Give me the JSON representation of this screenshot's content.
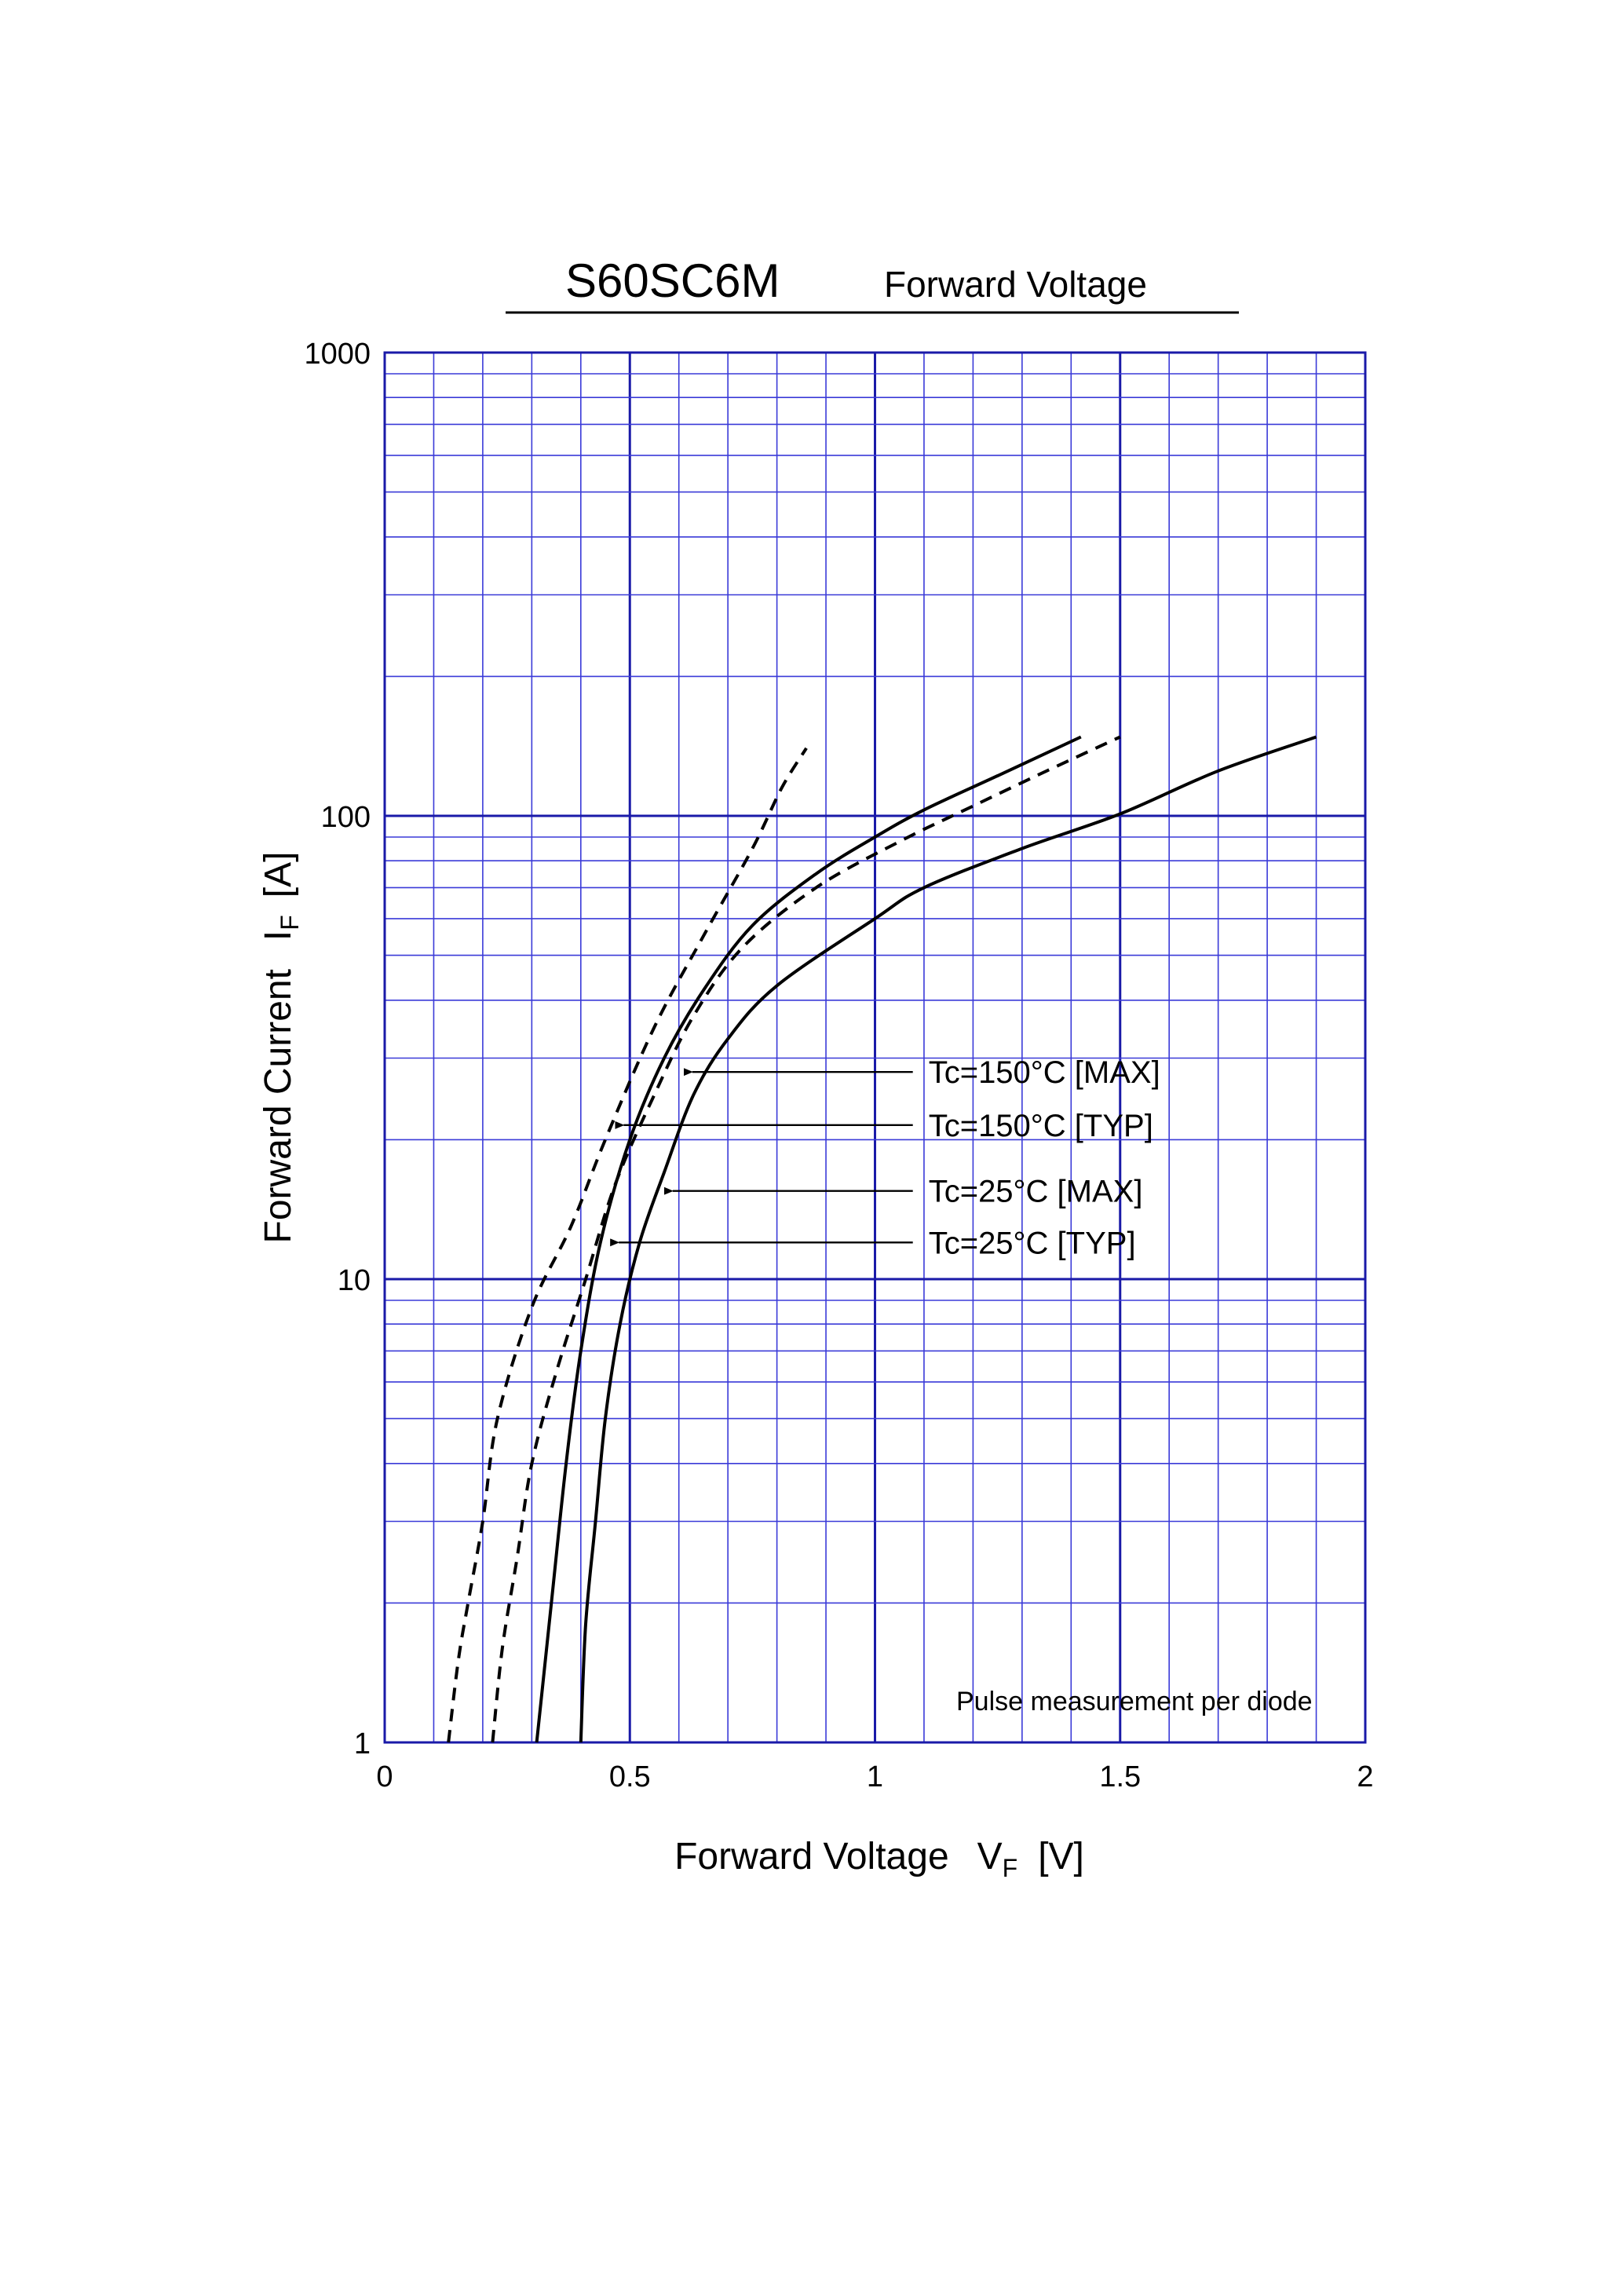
{
  "chart_data": {
    "type": "line",
    "title": "S60SC6M",
    "subtitle": "Forward Voltage",
    "xlabel": "Forward Voltage",
    "xlabel_symbol": "V",
    "xlabel_sub": "F",
    "xlabel_unit": "[V]",
    "ylabel": "Forward Current",
    "ylabel_symbol": "I",
    "ylabel_sub": "F",
    "ylabel_unit": "[A]",
    "xlim": [
      0,
      2
    ],
    "ylim": [
      1,
      1000
    ],
    "yscale": "log",
    "grid": true,
    "x_ticks": [
      "0",
      "0.5",
      "1",
      "1.5",
      "2"
    ],
    "x_tick_values": [
      0,
      0.5,
      1,
      1.5,
      2
    ],
    "y_ticks": [
      "1",
      "10",
      "100",
      "1000"
    ],
    "y_tick_values": [
      1,
      10,
      100,
      1000
    ],
    "note": "Pulse measurement per diode",
    "colors": {
      "grid": "#3a3ad8",
      "grid_major": "#1a1aa8",
      "curve": "#000000"
    },
    "series": [
      {
        "name": "Tc=150°C [TYP]",
        "dashed": true,
        "points": [
          [
            0.13,
            1
          ],
          [
            0.15,
            1.5
          ],
          [
            0.17,
            2
          ],
          [
            0.2,
            3
          ],
          [
            0.23,
            5
          ],
          [
            0.3,
            8.7
          ],
          [
            0.38,
            13
          ],
          [
            0.45,
            20
          ],
          [
            0.55,
            35
          ],
          [
            0.65,
            55
          ],
          [
            0.75,
            85
          ],
          [
            0.81,
            115
          ],
          [
            0.86,
            140
          ]
        ]
      },
      {
        "name": "Tc=150°C [MAX]",
        "dashed": false,
        "points": [
          [
            0.31,
            1
          ],
          [
            0.34,
            2
          ],
          [
            0.37,
            4
          ],
          [
            0.4,
            7
          ],
          [
            0.44,
            12
          ],
          [
            0.5,
            20
          ],
          [
            0.57,
            30
          ],
          [
            0.65,
            42
          ],
          [
            0.75,
            58
          ],
          [
            0.88,
            75
          ],
          [
            1.0,
            90
          ],
          [
            1.1,
            103
          ],
          [
            1.25,
            122
          ],
          [
            1.42,
            148
          ]
        ]
      },
      {
        "name": "Tc=25°C [TYP]",
        "dashed": true,
        "points": [
          [
            0.22,
            1
          ],
          [
            0.24,
            1.6
          ],
          [
            0.27,
            2.5
          ],
          [
            0.3,
            4
          ],
          [
            0.35,
            6.3
          ],
          [
            0.41,
            10
          ],
          [
            0.47,
            16
          ],
          [
            0.55,
            25
          ],
          [
            0.63,
            37
          ],
          [
            0.73,
            52
          ],
          [
            0.88,
            70
          ],
          [
            1.05,
            88
          ],
          [
            1.2,
            105
          ],
          [
            1.35,
            125
          ],
          [
            1.5,
            148
          ]
        ]
      },
      {
        "name": "Tc=25°C [MAX]",
        "dashed": false,
        "points": [
          [
            0.4,
            1
          ],
          [
            0.41,
            1.8
          ],
          [
            0.43,
            3
          ],
          [
            0.45,
            5
          ],
          [
            0.48,
            8
          ],
          [
            0.52,
            12
          ],
          [
            0.57,
            17
          ],
          [
            0.63,
            25
          ],
          [
            0.7,
            33
          ],
          [
            0.8,
            43
          ],
          [
            1.0,
            60
          ],
          [
            1.1,
            70
          ],
          [
            1.3,
            85
          ],
          [
            1.5,
            101
          ],
          [
            1.7,
            125
          ],
          [
            1.9,
            148
          ]
        ]
      }
    ],
    "annotations": [
      {
        "text": "Tc=150°C [MAX]",
        "label_x": 1.09,
        "label_y": 28,
        "arrow_to_x": 0.605,
        "arrow_to_y": 28
      },
      {
        "text": "Tc=150°C [TYP]",
        "label_x": 1.09,
        "label_y": 21.5,
        "arrow_to_x": 0.465,
        "arrow_to_y": 21.5
      },
      {
        "text": "Tc=25°C [MAX]",
        "label_x": 1.09,
        "label_y": 15.5,
        "arrow_to_x": 0.565,
        "arrow_to_y": 15.5
      },
      {
        "text": "Tc=25°C [TYP]",
        "label_x": 1.09,
        "label_y": 12,
        "arrow_to_x": 0.455,
        "arrow_to_y": 12
      }
    ]
  }
}
